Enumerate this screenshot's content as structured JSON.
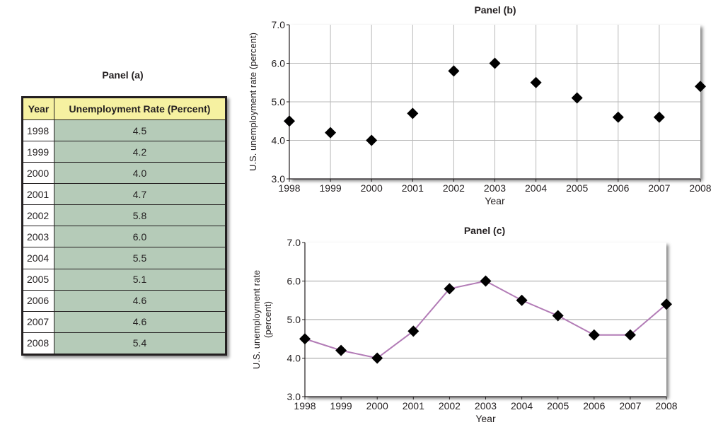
{
  "chart_data": [
    {
      "type": "table",
      "title": "Panel (a)",
      "columns": [
        "Year",
        "Unemployment Rate (Percent)"
      ],
      "rows": [
        [
          "1998",
          "4.5"
        ],
        [
          "1999",
          "4.2"
        ],
        [
          "2000",
          "4.0"
        ],
        [
          "2001",
          "4.7"
        ],
        [
          "2002",
          "5.8"
        ],
        [
          "2003",
          "6.0"
        ],
        [
          "2004",
          "5.5"
        ],
        [
          "2005",
          "5.1"
        ],
        [
          "2006",
          "4.6"
        ],
        [
          "2007",
          "4.6"
        ],
        [
          "2008",
          "5.4"
        ]
      ]
    },
    {
      "type": "scatter",
      "title": "Panel (b)",
      "xlabel": "Year",
      "ylabel": "U.S. unemployment rate (percent)",
      "x": [
        "1998",
        "1999",
        "2000",
        "2001",
        "2002",
        "2003",
        "2004",
        "2005",
        "2006",
        "2007",
        "2008"
      ],
      "y": [
        4.5,
        4.2,
        4.0,
        4.7,
        5.8,
        6.0,
        5.5,
        5.1,
        4.6,
        4.6,
        5.4
      ],
      "ylim": [
        3.0,
        7.0
      ],
      "yticks": [
        "3.0",
        "4.0",
        "5.0",
        "6.0",
        "7.0"
      ],
      "grid": "both",
      "marker": "diamond",
      "marker_color": "#000000"
    },
    {
      "type": "line",
      "title": "Panel (c)",
      "xlabel": "Year",
      "ylabel": [
        "U.S. unemployment rate",
        "(percent)"
      ],
      "x": [
        "1998",
        "1999",
        "2000",
        "2001",
        "2002",
        "2003",
        "2004",
        "2005",
        "2006",
        "2007",
        "2008"
      ],
      "y": [
        4.5,
        4.2,
        4.0,
        4.7,
        5.8,
        6.0,
        5.5,
        5.1,
        4.6,
        4.6,
        5.4
      ],
      "ylim": [
        3.0,
        7.0
      ],
      "yticks": [
        "3.0",
        "4.0",
        "5.0",
        "6.0",
        "7.0"
      ],
      "grid": "horizontal",
      "marker": "diamond",
      "marker_color": "#000000",
      "line_color": "#b27bb6"
    }
  ]
}
